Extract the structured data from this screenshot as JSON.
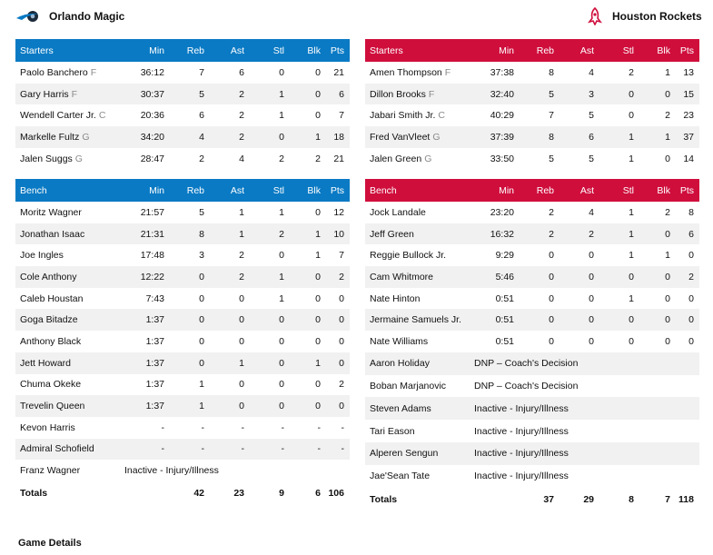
{
  "colors": {
    "magic": "#0a7ac4",
    "rockets": "#cf0e3c"
  },
  "home": {
    "name": "Orlando Magic",
    "logo_icon": "magic-logo-icon",
    "starters_header": [
      "Starters",
      "Min",
      "Reb",
      "Ast",
      "Stl",
      "Blk",
      "Pts"
    ],
    "starters": [
      {
        "name": "Paolo Banchero",
        "pos": "F",
        "min": "36:12",
        "reb": "7",
        "ast": "6",
        "stl": "0",
        "blk": "0",
        "pts": "21"
      },
      {
        "name": "Gary Harris",
        "pos": "F",
        "min": "30:37",
        "reb": "5",
        "ast": "2",
        "stl": "1",
        "blk": "0",
        "pts": "6"
      },
      {
        "name": "Wendell Carter Jr.",
        "pos": "C",
        "min": "20:36",
        "reb": "6",
        "ast": "2",
        "stl": "1",
        "blk": "0",
        "pts": "7"
      },
      {
        "name": "Markelle Fultz",
        "pos": "G",
        "min": "34:20",
        "reb": "4",
        "ast": "2",
        "stl": "0",
        "blk": "1",
        "pts": "18"
      },
      {
        "name": "Jalen Suggs",
        "pos": "G",
        "min": "28:47",
        "reb": "2",
        "ast": "4",
        "stl": "2",
        "blk": "2",
        "pts": "21"
      }
    ],
    "bench_header": [
      "Bench",
      "Min",
      "Reb",
      "Ast",
      "Stl",
      "Blk",
      "Pts"
    ],
    "bench": [
      {
        "name": "Moritz Wagner",
        "min": "21:57",
        "reb": "5",
        "ast": "1",
        "stl": "1",
        "blk": "0",
        "pts": "12"
      },
      {
        "name": "Jonathan Isaac",
        "min": "21:31",
        "reb": "8",
        "ast": "1",
        "stl": "2",
        "blk": "1",
        "pts": "10"
      },
      {
        "name": "Joe Ingles",
        "min": "17:48",
        "reb": "3",
        "ast": "2",
        "stl": "0",
        "blk": "1",
        "pts": "7"
      },
      {
        "name": "Cole Anthony",
        "min": "12:22",
        "reb": "0",
        "ast": "2",
        "stl": "1",
        "blk": "0",
        "pts": "2"
      },
      {
        "name": "Caleb Houstan",
        "min": "7:43",
        "reb": "0",
        "ast": "0",
        "stl": "1",
        "blk": "0",
        "pts": "0"
      },
      {
        "name": "Goga Bitadze",
        "min": "1:37",
        "reb": "0",
        "ast": "0",
        "stl": "0",
        "blk": "0",
        "pts": "0"
      },
      {
        "name": "Anthony Black",
        "min": "1:37",
        "reb": "0",
        "ast": "0",
        "stl": "0",
        "blk": "0",
        "pts": "0"
      },
      {
        "name": "Jett Howard",
        "min": "1:37",
        "reb": "0",
        "ast": "1",
        "stl": "0",
        "blk": "1",
        "pts": "0"
      },
      {
        "name": "Chuma Okeke",
        "min": "1:37",
        "reb": "1",
        "ast": "0",
        "stl": "0",
        "blk": "0",
        "pts": "2"
      },
      {
        "name": "Trevelin Queen",
        "min": "1:37",
        "reb": "1",
        "ast": "0",
        "stl": "0",
        "blk": "0",
        "pts": "0"
      },
      {
        "name": "Kevon Harris",
        "min": "-",
        "reb": "-",
        "ast": "-",
        "stl": "-",
        "blk": "-",
        "pts": "-"
      },
      {
        "name": "Admiral Schofield",
        "min": "-",
        "reb": "-",
        "ast": "-",
        "stl": "-",
        "blk": "-",
        "pts": "-"
      },
      {
        "name": "Franz Wagner",
        "note": "Inactive - Injury/Illness"
      }
    ],
    "totals": {
      "label": "Totals",
      "reb": "42",
      "ast": "23",
      "stl": "9",
      "blk": "6",
      "pts": "106"
    }
  },
  "away": {
    "name": "Houston Rockets",
    "logo_icon": "rockets-logo-icon",
    "starters_header": [
      "Starters",
      "Min",
      "Reb",
      "Ast",
      "Stl",
      "Blk",
      "Pts"
    ],
    "starters": [
      {
        "name": "Amen Thompson",
        "pos": "F",
        "min": "37:38",
        "reb": "8",
        "ast": "4",
        "stl": "2",
        "blk": "1",
        "pts": "13"
      },
      {
        "name": "Dillon Brooks",
        "pos": "F",
        "min": "32:40",
        "reb": "5",
        "ast": "3",
        "stl": "0",
        "blk": "0",
        "pts": "15"
      },
      {
        "name": "Jabari Smith Jr.",
        "pos": "C",
        "min": "40:29",
        "reb": "7",
        "ast": "5",
        "stl": "0",
        "blk": "2",
        "pts": "23"
      },
      {
        "name": "Fred VanVleet",
        "pos": "G",
        "min": "37:39",
        "reb": "8",
        "ast": "6",
        "stl": "1",
        "blk": "1",
        "pts": "37"
      },
      {
        "name": "Jalen Green",
        "pos": "G",
        "min": "33:50",
        "reb": "5",
        "ast": "5",
        "stl": "1",
        "blk": "0",
        "pts": "14"
      }
    ],
    "bench_header": [
      "Bench",
      "Min",
      "Reb",
      "Ast",
      "Stl",
      "Blk",
      "Pts"
    ],
    "bench": [
      {
        "name": "Jock Landale",
        "min": "23:20",
        "reb": "2",
        "ast": "4",
        "stl": "1",
        "blk": "2",
        "pts": "8"
      },
      {
        "name": "Jeff Green",
        "min": "16:32",
        "reb": "2",
        "ast": "2",
        "stl": "1",
        "blk": "0",
        "pts": "6"
      },
      {
        "name": "Reggie Bullock Jr.",
        "min": "9:29",
        "reb": "0",
        "ast": "0",
        "stl": "1",
        "blk": "1",
        "pts": "0"
      },
      {
        "name": "Cam Whitmore",
        "min": "5:46",
        "reb": "0",
        "ast": "0",
        "stl": "0",
        "blk": "0",
        "pts": "2"
      },
      {
        "name": "Nate Hinton",
        "min": "0:51",
        "reb": "0",
        "ast": "0",
        "stl": "1",
        "blk": "0",
        "pts": "0"
      },
      {
        "name": "Jermaine Samuels Jr.",
        "min": "0:51",
        "reb": "0",
        "ast": "0",
        "stl": "0",
        "blk": "0",
        "pts": "0"
      },
      {
        "name": "Nate Williams",
        "min": "0:51",
        "reb": "0",
        "ast": "0",
        "stl": "0",
        "blk": "0",
        "pts": "0"
      },
      {
        "name": "Aaron Holiday",
        "note": "DNP – Coach's Decision"
      },
      {
        "name": "Boban Marjanovic",
        "note": "DNP – Coach's Decision"
      },
      {
        "name": "Steven Adams",
        "note": "Inactive - Injury/Illness"
      },
      {
        "name": "Tari Eason",
        "note": "Inactive - Injury/Illness"
      },
      {
        "name": "Alperen Sengun",
        "note": "Inactive - Injury/Illness"
      },
      {
        "name": "Jae'Sean Tate",
        "note": "Inactive - Injury/Illness"
      }
    ],
    "totals": {
      "label": "Totals",
      "reb": "37",
      "ast": "29",
      "stl": "8",
      "blk": "7",
      "pts": "118"
    }
  },
  "footer": {
    "game_details": "Game Details"
  }
}
